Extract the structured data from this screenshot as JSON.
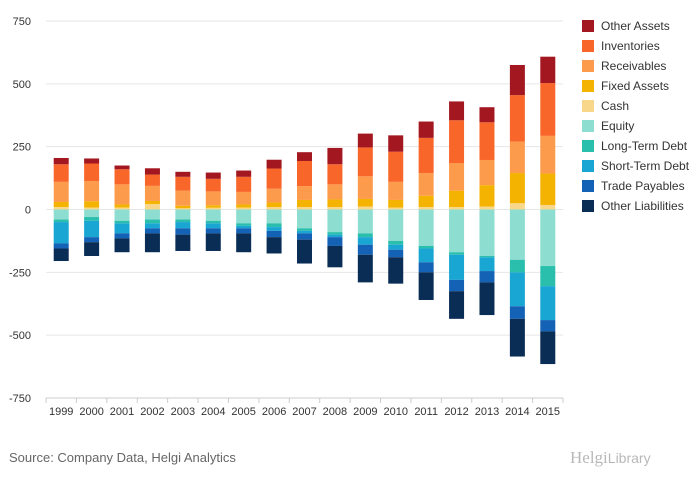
{
  "chart_data": {
    "type": "bar",
    "stacked": true,
    "categories": [
      "1999",
      "2000",
      "2001",
      "2002",
      "2003",
      "2004",
      "2005",
      "2006",
      "2007",
      "2008",
      "2009",
      "2010",
      "2011",
      "2012",
      "2013",
      "2014",
      "2015"
    ],
    "ylim": [
      -750,
      750
    ],
    "yticks": [
      -750,
      -500,
      -250,
      0,
      250,
      500,
      750
    ],
    "grid": true,
    "legend_position": "right",
    "series": [
      {
        "name": "Cash",
        "color": "#f8d78a",
        "side": "asset",
        "values": [
          10,
          8,
          8,
          22,
          5,
          7,
          8,
          10,
          10,
          10,
          12,
          8,
          10,
          10,
          12,
          25,
          18
        ]
      },
      {
        "name": "Fixed Assets",
        "color": "#f4b300",
        "side": "asset",
        "values": [
          20,
          25,
          12,
          12,
          10,
          10,
          12,
          18,
          28,
          30,
          30,
          30,
          45,
          65,
          85,
          120,
          125
        ]
      },
      {
        "name": "Receivables",
        "color": "#fd9b4c",
        "side": "asset",
        "values": [
          80,
          80,
          80,
          60,
          60,
          55,
          50,
          55,
          55,
          60,
          90,
          72,
          90,
          110,
          100,
          125,
          150
        ]
      },
      {
        "name": "Inventories",
        "color": "#f9662a",
        "side": "asset",
        "values": [
          70,
          70,
          60,
          45,
          55,
          50,
          60,
          80,
          100,
          80,
          115,
          120,
          140,
          170,
          150,
          185,
          210
        ]
      },
      {
        "name": "Other Assets",
        "color": "#a21720",
        "side": "asset",
        "values": [
          25,
          20,
          15,
          25,
          20,
          25,
          25,
          35,
          35,
          65,
          55,
          65,
          65,
          75,
          60,
          120,
          105
        ]
      },
      {
        "name": "Equity",
        "color": "#8dddd1",
        "side": "liability",
        "values": [
          -40,
          -30,
          -45,
          -40,
          -40,
          -45,
          -55,
          -55,
          -75,
          -90,
          -95,
          -125,
          -145,
          -170,
          -185,
          -200,
          -225
        ]
      },
      {
        "name": "Long-Term Debt",
        "color": "#2abfad",
        "side": "liability",
        "values": [
          -10,
          -15,
          -10,
          -15,
          -10,
          -10,
          -10,
          -15,
          -10,
          -10,
          -15,
          -15,
          -10,
          -10,
          -5,
          -50,
          -80
        ]
      },
      {
        "name": "Short-Term Debt",
        "color": "#1aa6d3",
        "side": "liability",
        "values": [
          -85,
          -65,
          -40,
          -20,
          -25,
          -20,
          -10,
          -15,
          -10,
          -10,
          -30,
          -20,
          -55,
          -100,
          -55,
          -135,
          -135
        ]
      },
      {
        "name": "Trade Payables",
        "color": "#1462b5",
        "side": "liability",
        "values": [
          -20,
          -20,
          -20,
          -20,
          -25,
          -20,
          -20,
          -25,
          -25,
          -35,
          -40,
          -30,
          -40,
          -45,
          -45,
          -50,
          -45
        ]
      },
      {
        "name": "Other Liabilities",
        "color": "#0a2d55",
        "side": "liability",
        "values": [
          -50,
          -55,
          -55,
          -75,
          -65,
          -70,
          -75,
          -65,
          -95,
          -85,
          -110,
          -105,
          -110,
          -110,
          -130,
          -150,
          -130
        ]
      }
    ],
    "legend_order": [
      "Other Assets",
      "Inventories",
      "Receivables",
      "Fixed Assets",
      "Cash",
      "Equity",
      "Long-Term Debt",
      "Short-Term Debt",
      "Trade Payables",
      "Other Liabilities"
    ]
  },
  "footer": {
    "source": "Source: Company Data, Helgi Analytics",
    "logo_main": "Helgi",
    "logo_sub": "Library"
  }
}
